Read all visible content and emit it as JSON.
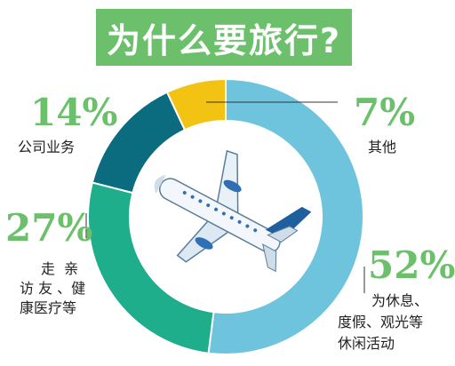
{
  "title": "为什么要旅行?",
  "chart_data": {
    "type": "pie",
    "style": "donut",
    "title": "为什么要旅行?",
    "slices": [
      {
        "label": "为休息、度假、观光等休闲活动",
        "value": 52,
        "value_label": "52%",
        "color": "#6ec4dc"
      },
      {
        "label": "走亲访友、健康医疗等",
        "value": 27,
        "value_label": "27%",
        "color": "#1fae8c"
      },
      {
        "label": "公司业务",
        "value": 14,
        "value_label": "14%",
        "color": "#0b6b7f"
      },
      {
        "label": "其他",
        "value": 7,
        "value_label": "7%",
        "color": "#f2c312"
      }
    ]
  },
  "labels": {
    "leisure": {
      "pct": "52%",
      "line1": "为休息、",
      "line2": "度假、观光等",
      "line3": "休闲活动"
    },
    "visit": {
      "pct": "27%",
      "line1": "走  亲",
      "line2": "访 友 、健",
      "line3": "康医疗等"
    },
    "business": {
      "pct": "14%",
      "line1": "公司业务"
    },
    "other": {
      "pct": "7%",
      "line1": "其他"
    }
  },
  "colors": {
    "title_bg": "#6cc06b",
    "pct_text": "#6cc06b"
  },
  "icon": "airplane-icon"
}
